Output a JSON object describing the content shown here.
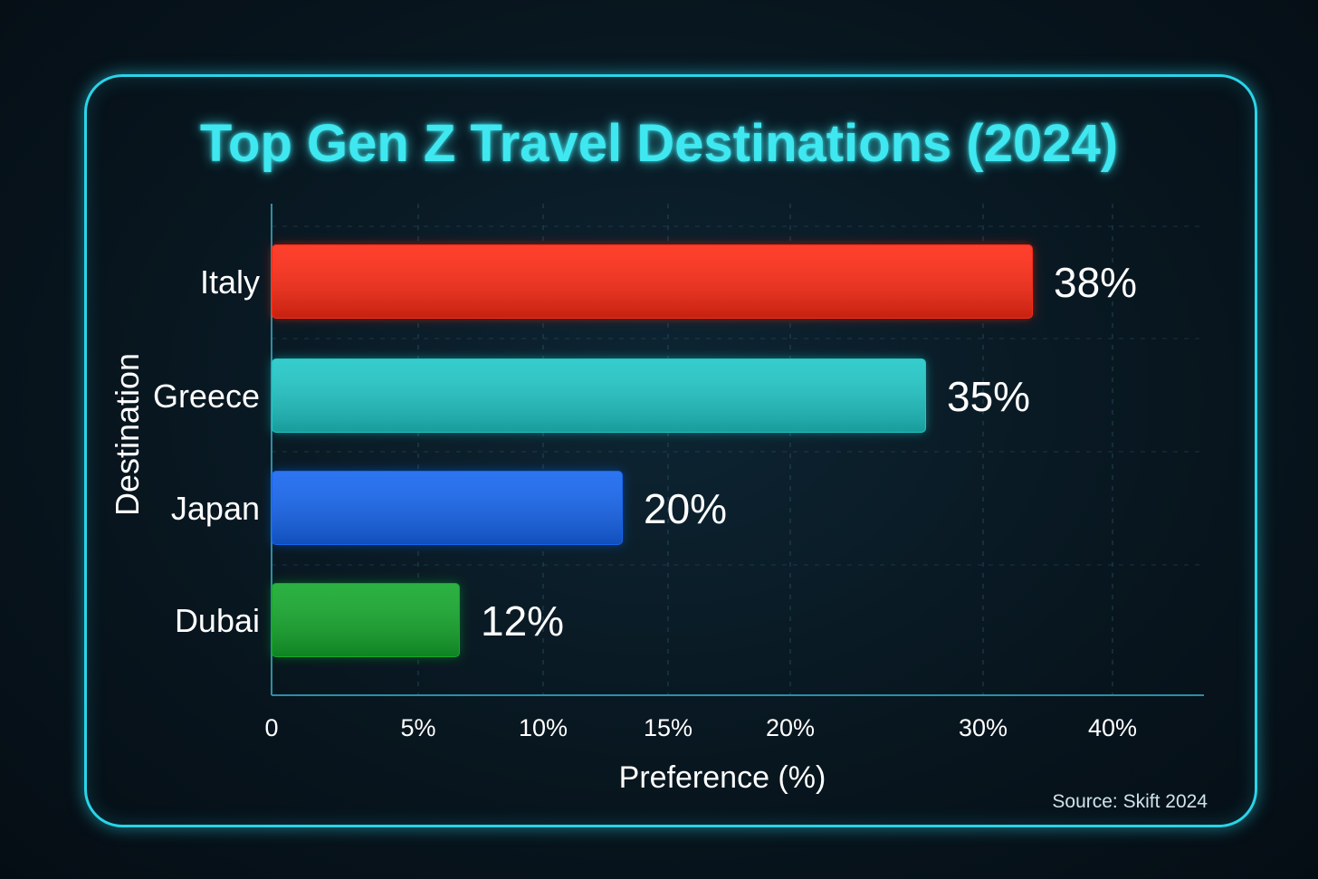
{
  "chart_data": {
    "type": "bar",
    "orientation": "horizontal",
    "title": "Top Gen Z Travel Destinations (2024)",
    "xlabel": "Preference (%)",
    "ylabel": "Destination",
    "categories": [
      "Italy",
      "Greece",
      "Japan",
      "Dubai"
    ],
    "values": [
      38,
      35,
      20,
      12
    ],
    "value_labels": [
      "38%",
      "35%",
      "20%",
      "12%"
    ],
    "x_ticks": [
      {
        "value": 0,
        "label": "0"
      },
      {
        "value": 5,
        "label": "5%"
      },
      {
        "value": 10,
        "label": "10%"
      },
      {
        "value": 15,
        "label": "15%"
      },
      {
        "value": 20,
        "label": "20%"
      },
      {
        "value": 30,
        "label": "30%"
      },
      {
        "value": 40,
        "label": "40%"
      }
    ],
    "xlim": [
      0,
      40
    ],
    "grid": true,
    "bar_colors": [
      "#ff2a14",
      "#1fc7c7",
      "#1565f0",
      "#14a82c"
    ],
    "source": "Source: Skift 2024"
  },
  "colors": {
    "accent": "#2ad4e8",
    "title": "#3fe8f0",
    "background": "#06121b"
  }
}
